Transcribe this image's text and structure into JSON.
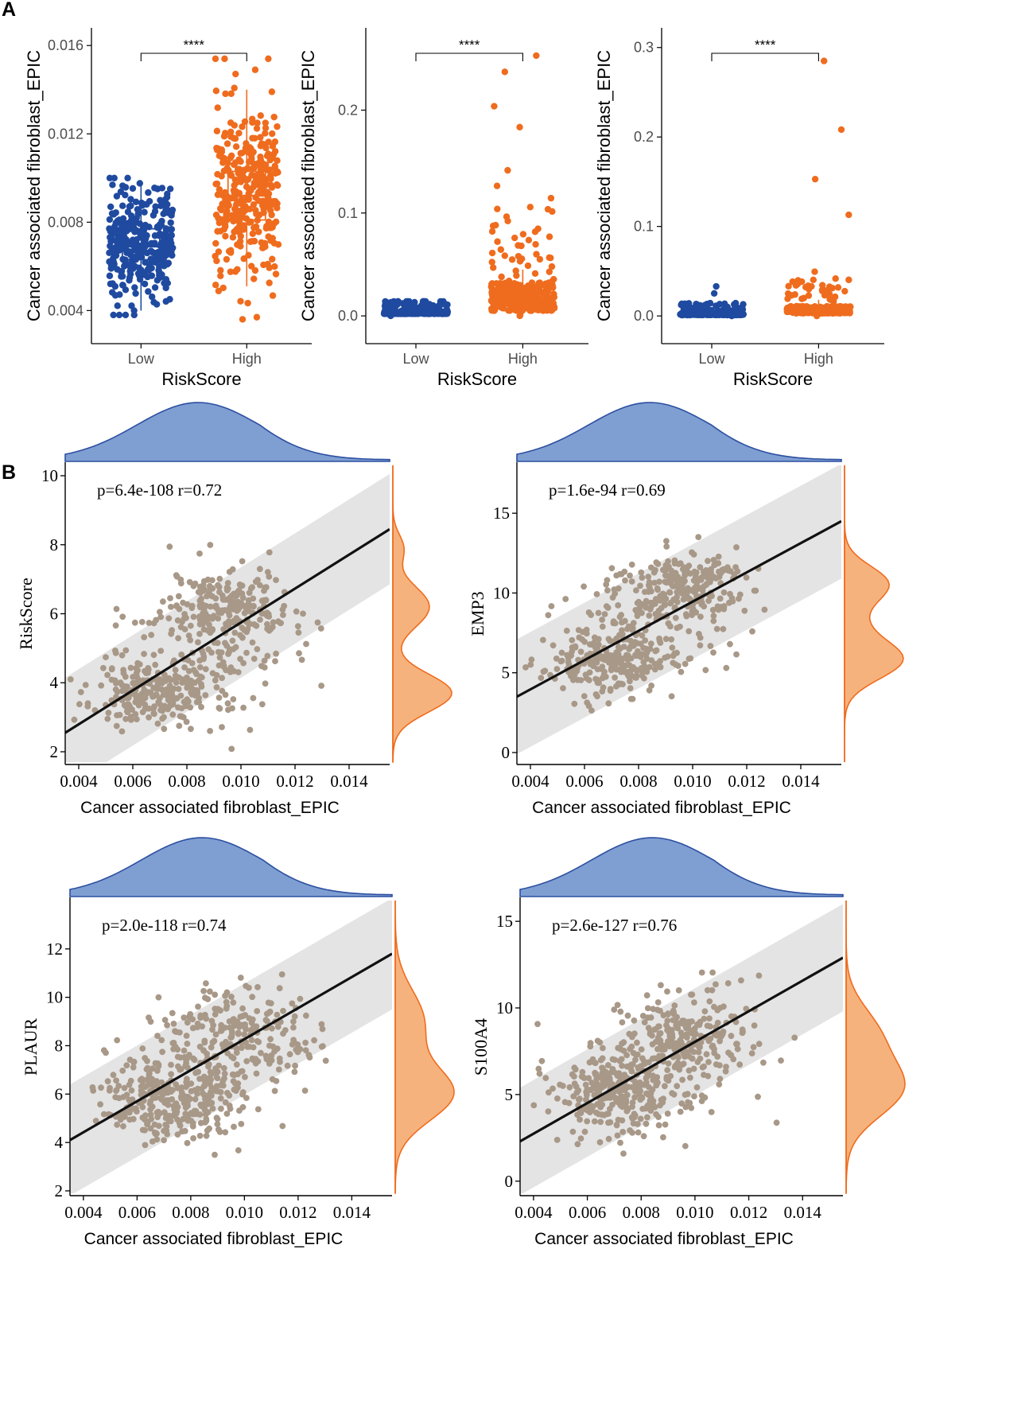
{
  "panels": {
    "a": "A",
    "b": "B"
  },
  "colors": {
    "low": "#1f4aa0",
    "high": "#ef6c1e",
    "scatter_point": "#a89888",
    "band": "#e4e4e4",
    "density_top_fill": "#7f9fd3",
    "density_top_line": "#2c4fa0",
    "density_right_fill": "#f6b27c",
    "density_right_line": "#ef6c1e"
  },
  "chart_data": [
    {
      "type": "box",
      "panel": "A",
      "title": "",
      "xlabel": "RiskScore",
      "ylabel": "Cancer associated fibroblast_EPIC",
      "categories": [
        "Low",
        "High"
      ],
      "ylim": [
        0.0025,
        0.0168
      ],
      "yticks": [
        0.004,
        0.008,
        0.012,
        0.016
      ],
      "ytick_labels": [
        "0.004",
        "0.008",
        "0.012",
        "0.016"
      ],
      "significance": "****",
      "boxes": [
        {
          "group": "Low",
          "q1": 0.0063,
          "median": 0.0069,
          "q3": 0.0077,
          "whisker_low": 0.004,
          "whisker_high": 0.0099,
          "points_min": 0.0038,
          "points_max": 0.01
        },
        {
          "group": "High",
          "q1": 0.0081,
          "median": 0.0092,
          "q3": 0.0103,
          "whisker_low": 0.0051,
          "whisker_high": 0.014,
          "points_min": 0.0036,
          "points_max": 0.0154
        }
      ]
    },
    {
      "type": "box",
      "panel": "A",
      "title": "",
      "xlabel": "RiskScore",
      "ylabel": "Cancer associated fibroblast_EPIC",
      "categories": [
        "Low",
        "High"
      ],
      "ylim": [
        -0.027,
        0.28
      ],
      "yticks": [
        0.0,
        0.1,
        0.2
      ],
      "ytick_labels": [
        "0.0",
        "0.1",
        "0.2"
      ],
      "significance": "****",
      "boxes": [
        {
          "group": "Low",
          "q1": 0.002,
          "median": 0.003,
          "q3": 0.004,
          "whisker_low": 0.0,
          "whisker_high": 0.008,
          "points_min": 0.0,
          "points_max": 0.014
        },
        {
          "group": "High",
          "q1": 0.005,
          "median": 0.011,
          "q3": 0.026,
          "whisker_low": 0.0,
          "whisker_high": 0.045,
          "points_min": 0.0,
          "points_max": 0.253
        }
      ]
    },
    {
      "type": "box",
      "panel": "A",
      "title": "",
      "xlabel": "RiskScore",
      "ylabel": "Cancer associated fibroblast_EPIC",
      "categories": [
        "Low",
        "High"
      ],
      "ylim": [
        -0.031,
        0.322
      ],
      "yticks": [
        0.0,
        0.1,
        0.2,
        0.3
      ],
      "ytick_labels": [
        "0.0",
        "0.1",
        "0.2",
        "0.3"
      ],
      "significance": "****",
      "boxes": [
        {
          "group": "Low",
          "q1": 0.001,
          "median": 0.002,
          "q3": 0.003,
          "whisker_low": 0.0,
          "whisker_high": 0.006,
          "points_min": 0.0,
          "points_max": 0.033
        },
        {
          "group": "High",
          "q1": 0.003,
          "median": 0.006,
          "q3": 0.009,
          "whisker_low": 0.0,
          "whisker_high": 0.018,
          "points_min": 0.0,
          "points_max": 0.285
        }
      ]
    },
    {
      "type": "scatter",
      "panel": "B",
      "title": "",
      "xlabel": "Cancer associated fibroblast_EPIC",
      "ylabel": "RiskScore",
      "stat_label": "p=6.4e-108 r=0.72",
      "xlim": [
        0.0035,
        0.0155
      ],
      "ylim": [
        1.7,
        10.3
      ],
      "xticks": [
        0.004,
        0.006,
        0.008,
        0.01,
        0.012,
        0.014
      ],
      "xtick_labels": [
        "0.004",
        "0.006",
        "0.008",
        "0.010",
        "0.012",
        "0.014"
      ],
      "yticks": [
        2,
        4,
        6,
        8,
        10
      ],
      "ytick_labels": [
        "2",
        "4",
        "6",
        "8",
        "10"
      ],
      "fit_line": [
        [
          0.0035,
          2.55
        ],
        [
          0.0155,
          8.45
        ]
      ],
      "band_halfwidth": 1.6,
      "cloud": [
        {
          "x": 0.0068,
          "y": 3.7,
          "sx": 0.0011,
          "sy": 0.45,
          "n": 230
        },
        {
          "x": 0.0095,
          "y": 6.2,
          "sx": 0.0012,
          "sy": 0.6,
          "n": 210
        },
        {
          "x": 0.0085,
          "y": 4.9,
          "sx": 0.0016,
          "sy": 1.0,
          "n": 120
        }
      ],
      "density_right": [
        {
          "y": 3.7,
          "w": 0.55,
          "a": 1.0
        },
        {
          "y": 6.2,
          "w": 0.6,
          "a": 0.62
        },
        {
          "y": 7.9,
          "w": 0.4,
          "a": 0.18
        }
      ],
      "seed": 11
    },
    {
      "type": "scatter",
      "panel": "B",
      "title": "",
      "xlabel": "Cancer associated fibroblast_EPIC",
      "ylabel": "EMP3",
      "stat_label": "p=1.6e-94 r=0.69",
      "xlim": [
        0.0035,
        0.0155
      ],
      "ylim": [
        -0.6,
        18.0
      ],
      "xticks": [
        0.004,
        0.006,
        0.008,
        0.01,
        0.012,
        0.014
      ],
      "xtick_labels": [
        "0.004",
        "0.006",
        "0.008",
        "0.010",
        "0.012",
        "0.014"
      ],
      "yticks": [
        0,
        5,
        10,
        15
      ],
      "ytick_labels": [
        "0",
        "5",
        "10",
        "15"
      ],
      "fit_line": [
        [
          0.0035,
          3.5
        ],
        [
          0.0155,
          14.5
        ]
      ],
      "band_halfwidth": 3.6,
      "cloud": [
        {
          "x": 0.0068,
          "y": 5.6,
          "sx": 0.0011,
          "sy": 1.0,
          "n": 230
        },
        {
          "x": 0.0095,
          "y": 10.5,
          "sx": 0.0012,
          "sy": 1.0,
          "n": 210
        },
        {
          "x": 0.0085,
          "y": 7.8,
          "sx": 0.0016,
          "sy": 1.8,
          "n": 120
        }
      ],
      "density_right": [
        {
          "y": 5.8,
          "w": 1.2,
          "a": 1.0
        },
        {
          "y": 10.6,
          "w": 1.1,
          "a": 0.75
        },
        {
          "y": 8.2,
          "w": 1.2,
          "a": 0.25
        }
      ],
      "seed": 23
    },
    {
      "type": "scatter",
      "panel": "B",
      "title": "",
      "xlabel": "Cancer associated fibroblast_EPIC",
      "ylabel": "PLAUR",
      "stat_label": "p=2.0e-118 r=0.74",
      "xlim": [
        0.0035,
        0.0155
      ],
      "ylim": [
        1.9,
        14.0
      ],
      "xticks": [
        0.004,
        0.006,
        0.008,
        0.01,
        0.012,
        0.014
      ],
      "xtick_labels": [
        "0.004",
        "0.006",
        "0.008",
        "0.010",
        "0.012",
        "0.014"
      ],
      "yticks": [
        2,
        4,
        6,
        8,
        10,
        12
      ],
      "ytick_labels": [
        "2",
        "4",
        "6",
        "8",
        "10",
        "12"
      ],
      "fit_line": [
        [
          0.0035,
          4.1
        ],
        [
          0.0155,
          11.8
        ]
      ],
      "band_halfwidth": 2.3,
      "cloud": [
        {
          "x": 0.0072,
          "y": 5.8,
          "sx": 0.0012,
          "sy": 0.8,
          "n": 280
        },
        {
          "x": 0.0098,
          "y": 8.4,
          "sx": 0.0014,
          "sy": 1.1,
          "n": 230
        },
        {
          "x": 0.0085,
          "y": 7.0,
          "sx": 0.0018,
          "sy": 1.4,
          "n": 60
        }
      ],
      "density_right": [
        {
          "y": 6.0,
          "w": 1.1,
          "a": 1.0
        },
        {
          "y": 9.0,
          "w": 1.3,
          "a": 0.5
        }
      ],
      "seed": 37
    },
    {
      "type": "scatter",
      "panel": "B",
      "title": "",
      "xlabel": "Cancer associated fibroblast_EPIC",
      "ylabel": "S100A4",
      "stat_label": "p=2.6e-127 r=0.76",
      "xlim": [
        0.0035,
        0.0155
      ],
      "ylim": [
        -0.7,
        16.2
      ],
      "xticks": [
        0.004,
        0.006,
        0.008,
        0.01,
        0.012,
        0.014
      ],
      "xtick_labels": [
        "0.004",
        "0.006",
        "0.008",
        "0.010",
        "0.012",
        "0.014"
      ],
      "yticks": [
        0,
        5,
        10,
        15
      ],
      "ytick_labels": [
        "0",
        "5",
        "10",
        "15"
      ],
      "fit_line": [
        [
          0.0035,
          2.3
        ],
        [
          0.0155,
          12.9
        ]
      ],
      "band_halfwidth": 3.1,
      "cloud": [
        {
          "x": 0.0072,
          "y": 5.0,
          "sx": 0.0012,
          "sy": 1.2,
          "n": 280
        },
        {
          "x": 0.0098,
          "y": 8.2,
          "sx": 0.0014,
          "sy": 1.4,
          "n": 230
        },
        {
          "x": 0.0085,
          "y": 6.5,
          "sx": 0.0018,
          "sy": 1.8,
          "n": 60
        }
      ],
      "density_right": [
        {
          "y": 5.3,
          "w": 1.6,
          "a": 1.0
        },
        {
          "y": 8.5,
          "w": 1.6,
          "a": 0.55
        }
      ],
      "seed": 53
    }
  ]
}
